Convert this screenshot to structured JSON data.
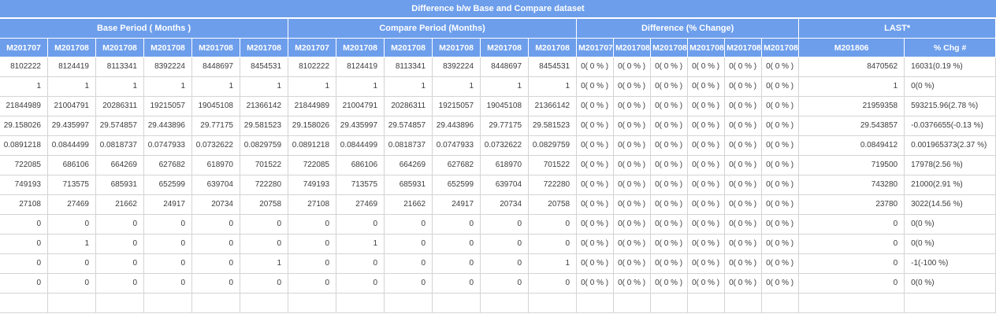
{
  "title": "Difference b/w Base and Compare dataset",
  "colors": {
    "header_bg": "#6d9eeb",
    "header_text": "#ffffff",
    "cell_text": "#3c3c3c",
    "grid_line": "#d4d4d4"
  },
  "groups": [
    {
      "label": "Base Period ( Months )",
      "span": 6
    },
    {
      "label": "Compare Period (Months)",
      "span": 6
    },
    {
      "label": "Difference (% Change)",
      "span": 6
    },
    {
      "label": "LAST*",
      "span": 2
    }
  ],
  "columns": [
    "M201707",
    "M201708",
    "M201708",
    "M201708",
    "M201708",
    "M201708",
    "M201707",
    "M201708",
    "M201708",
    "M201708",
    "M201708",
    "M201708",
    "M201707",
    "M201708",
    "M201708",
    "M201708",
    "M201708",
    "M201708",
    "M201806",
    "% Chg #"
  ],
  "rows": [
    [
      "8102222",
      "8124419",
      "8113341",
      "8392224",
      "8448697",
      "8454531",
      "8102222",
      "8124419",
      "8113341",
      "8392224",
      "8448697",
      "8454531",
      "0( 0 % )",
      "0( 0 % )",
      "0( 0 % )",
      "0( 0 % )",
      "0( 0 % )",
      "0( 0 % )",
      "8470562",
      "16031(0.19 %)"
    ],
    [
      "1",
      "1",
      "1",
      "1",
      "1",
      "1",
      "1",
      "1",
      "1",
      "1",
      "1",
      "1",
      "0( 0 % )",
      "0( 0 % )",
      "0( 0 % )",
      "0( 0 % )",
      "0( 0 % )",
      "0( 0 % )",
      "1",
      "0(0 %)"
    ],
    [
      "21844989",
      "21004791",
      "20286311",
      "19215057",
      "19045108",
      "21366142",
      "21844989",
      "21004791",
      "20286311",
      "19215057",
      "19045108",
      "21366142",
      "0( 0 % )",
      "0( 0 % )",
      "0( 0 % )",
      "0( 0 % )",
      "0( 0 % )",
      "0( 0 % )",
      "21959358",
      "593215.96(2.78 %)"
    ],
    [
      "29.158026",
      "29.435997",
      "29.574857",
      "29.443896",
      "29.77175",
      "29.581523",
      "29.158026",
      "29.435997",
      "29.574857",
      "29.443896",
      "29.77175",
      "29.581523",
      "0( 0 % )",
      "0( 0 % )",
      "0( 0 % )",
      "0( 0 % )",
      "0( 0 % )",
      "0( 0 % )",
      "29.543857",
      "-0.0376655(-0.13 %)"
    ],
    [
      "0.0891218",
      "0.0844499",
      "0.0818737",
      "0.0747933",
      "0.0732622",
      "0.0829759",
      "0.0891218",
      "0.0844499",
      "0.0818737",
      "0.0747933",
      "0.0732622",
      "0.0829759",
      "0( 0 % )",
      "0( 0 % )",
      "0( 0 % )",
      "0( 0 % )",
      "0( 0 % )",
      "0( 0 % )",
      "0.0849412",
      "0.001965373(2.37 %)"
    ],
    [
      "722085",
      "686106",
      "664269",
      "627682",
      "618970",
      "701522",
      "722085",
      "686106",
      "664269",
      "627682",
      "618970",
      "701522",
      "0( 0 % )",
      "0( 0 % )",
      "0( 0 % )",
      "0( 0 % )",
      "0( 0 % )",
      "0( 0 % )",
      "719500",
      "17978(2.56 %)"
    ],
    [
      "749193",
      "713575",
      "685931",
      "652599",
      "639704",
      "722280",
      "749193",
      "713575",
      "685931",
      "652599",
      "639704",
      "722280",
      "0( 0 % )",
      "0( 0 % )",
      "0( 0 % )",
      "0( 0 % )",
      "0( 0 % )",
      "0( 0 % )",
      "743280",
      "21000(2.91 %)"
    ],
    [
      "27108",
      "27469",
      "21662",
      "24917",
      "20734",
      "20758",
      "27108",
      "27469",
      "21662",
      "24917",
      "20734",
      "20758",
      "0( 0 % )",
      "0( 0 % )",
      "0( 0 % )",
      "0( 0 % )",
      "0( 0 % )",
      "0( 0 % )",
      "23780",
      "3022(14.56 %)"
    ],
    [
      "0",
      "0",
      "0",
      "0",
      "0",
      "0",
      "0",
      "0",
      "0",
      "0",
      "0",
      "0",
      "0( 0 % )",
      "0( 0 % )",
      "0( 0 % )",
      "0( 0 % )",
      "0( 0 % )",
      "0( 0 % )",
      "0",
      "0(0 %)"
    ],
    [
      "0",
      "1",
      "0",
      "0",
      "0",
      "0",
      "0",
      "1",
      "0",
      "0",
      "0",
      "0",
      "0( 0 % )",
      "0( 0 % )",
      "0( 0 % )",
      "0( 0 % )",
      "0( 0 % )",
      "0( 0 % )",
      "0",
      "0(0 %)"
    ],
    [
      "0",
      "0",
      "0",
      "0",
      "0",
      "1",
      "0",
      "0",
      "0",
      "0",
      "0",
      "1",
      "0( 0 % )",
      "0( 0 % )",
      "0( 0 % )",
      "0( 0 % )",
      "0( 0 % )",
      "0( 0 % )",
      "0",
      "-1(-100 %)"
    ],
    [
      "0",
      "0",
      "0",
      "0",
      "0",
      "0",
      "0",
      "0",
      "0",
      "0",
      "0",
      "0",
      "0( 0 % )",
      "0( 0 % )",
      "0( 0 % )",
      "0( 0 % )",
      "0( 0 % )",
      "0( 0 % )",
      "0",
      "0(0 %)"
    ]
  ]
}
